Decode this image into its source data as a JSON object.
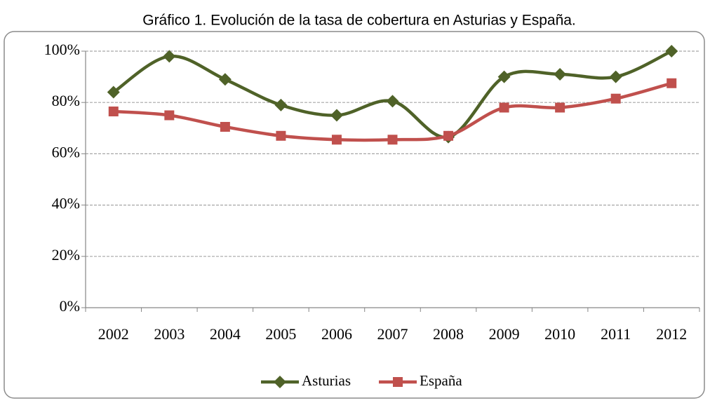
{
  "chart_data": {
    "type": "line",
    "title": "Gráfico 1. Evolución de la tasa de cobertura en Asturias y España.",
    "categories": [
      "2002",
      "2003",
      "2004",
      "2005",
      "2006",
      "2007",
      "2008",
      "2009",
      "2010",
      "2011",
      "2012"
    ],
    "series": [
      {
        "name": "Asturias",
        "color": "#4f6228",
        "marker": "diamond",
        "values": [
          84,
          98,
          89,
          79,
          75,
          80.5,
          66.5,
          90,
          91,
          90,
          100
        ]
      },
      {
        "name": "España",
        "color": "#c0504d",
        "marker": "square",
        "values": [
          76.5,
          75,
          70.5,
          67,
          65.5,
          65.5,
          67,
          78,
          78,
          81.5,
          87.5
        ]
      }
    ],
    "ylim": [
      0,
      100
    ],
    "yticks": [
      {
        "value": 0,
        "label": "0%"
      },
      {
        "value": 20,
        "label": "20%"
      },
      {
        "value": 40,
        "label": "40%"
      },
      {
        "value": 60,
        "label": "60%"
      },
      {
        "value": 80,
        "label": "80%"
      },
      {
        "value": 100,
        "label": "100%"
      }
    ],
    "grid": true,
    "smooth": true,
    "legend": "bottom"
  }
}
